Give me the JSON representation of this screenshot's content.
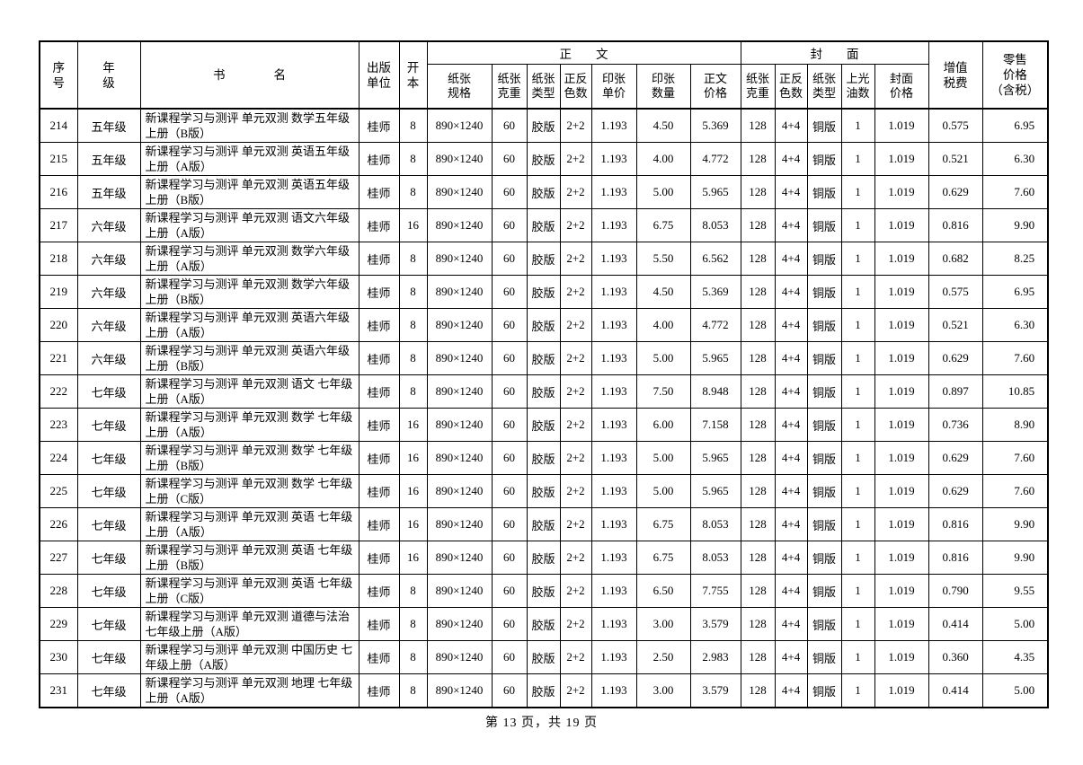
{
  "page": {
    "background_color": "#ffffff",
    "text_color": "#000000",
    "border_color": "#000000",
    "footer": "第 13 页，共 19 页"
  },
  "table": {
    "group_header": {
      "main_text": "正　　文",
      "cover": "封　　面"
    },
    "header": {
      "serial": "序\n号",
      "grade": "年\n级",
      "title": "书　　　　名",
      "publisher": "出版\n单位",
      "format": "开\n本",
      "paper_spec": "纸张\n规格",
      "paper_weight": "纸张\n克重",
      "paper_type": "纸张\n类型",
      "color_count": "正反\n色数",
      "sheet_unit_price": "印张\n单价",
      "sheet_count": "印张\n数量",
      "text_price": "正文\n价格",
      "cover_paper_weight": "纸张\n克重",
      "cover_color_count": "正反\n色数",
      "cover_paper_type": "纸张\n类型",
      "gloss_count": "上光\n油数",
      "cover_price": "封面\n价格",
      "vat": "增值\n税费",
      "retail_price": "零售\n价格\n（含税）"
    },
    "column_keys": [
      "serial",
      "grade",
      "title",
      "publisher",
      "format",
      "paper_spec",
      "paper_weight",
      "paper_type",
      "color_count",
      "sheet_unit_price",
      "sheet_count",
      "text_price",
      "cover_paper_weight",
      "cover_color_count",
      "cover_paper_type",
      "gloss_count",
      "cover_price",
      "vat",
      "retail_price"
    ],
    "rows": [
      [
        "214",
        "五年级",
        "新课程学习与测评 单元双测 数学五年级上册（B版）",
        "桂师",
        "8",
        "890×1240",
        "60",
        "胶版",
        "2+2",
        "1.193",
        "4.50",
        "5.369",
        "128",
        "4+4",
        "铜版",
        "1",
        "1.019",
        "0.575",
        "6.95"
      ],
      [
        "215",
        "五年级",
        "新课程学习与测评 单元双测 英语五年级上册（A版）",
        "桂师",
        "8",
        "890×1240",
        "60",
        "胶版",
        "2+2",
        "1.193",
        "4.00",
        "4.772",
        "128",
        "4+4",
        "铜版",
        "1",
        "1.019",
        "0.521",
        "6.30"
      ],
      [
        "216",
        "五年级",
        "新课程学习与测评 单元双测 英语五年级上册（B版）",
        "桂师",
        "8",
        "890×1240",
        "60",
        "胶版",
        "2+2",
        "1.193",
        "5.00",
        "5.965",
        "128",
        "4+4",
        "铜版",
        "1",
        "1.019",
        "0.629",
        "7.60"
      ],
      [
        "217",
        "六年级",
        "新课程学习与测评 单元双测 语文六年级上册（A版）",
        "桂师",
        "16",
        "890×1240",
        "60",
        "胶版",
        "2+2",
        "1.193",
        "6.75",
        "8.053",
        "128",
        "4+4",
        "铜版",
        "1",
        "1.019",
        "0.816",
        "9.90"
      ],
      [
        "218",
        "六年级",
        "新课程学习与测评 单元双测 数学六年级上册（A版）",
        "桂师",
        "8",
        "890×1240",
        "60",
        "胶版",
        "2+2",
        "1.193",
        "5.50",
        "6.562",
        "128",
        "4+4",
        "铜版",
        "1",
        "1.019",
        "0.682",
        "8.25"
      ],
      [
        "219",
        "六年级",
        "新课程学习与测评 单元双测 数学六年级上册（B版）",
        "桂师",
        "8",
        "890×1240",
        "60",
        "胶版",
        "2+2",
        "1.193",
        "4.50",
        "5.369",
        "128",
        "4+4",
        "铜版",
        "1",
        "1.019",
        "0.575",
        "6.95"
      ],
      [
        "220",
        "六年级",
        "新课程学习与测评 单元双测 英语六年级上册（A版）",
        "桂师",
        "8",
        "890×1240",
        "60",
        "胶版",
        "2+2",
        "1.193",
        "4.00",
        "4.772",
        "128",
        "4+4",
        "铜版",
        "1",
        "1.019",
        "0.521",
        "6.30"
      ],
      [
        "221",
        "六年级",
        "新课程学习与测评 单元双测 英语六年级上册（B版）",
        "桂师",
        "8",
        "890×1240",
        "60",
        "胶版",
        "2+2",
        "1.193",
        "5.00",
        "5.965",
        "128",
        "4+4",
        "铜版",
        "1",
        "1.019",
        "0.629",
        "7.60"
      ],
      [
        "222",
        "七年级",
        "新课程学习与测评 单元双测 语文 七年级上册（A版）",
        "桂师",
        "8",
        "890×1240",
        "60",
        "胶版",
        "2+2",
        "1.193",
        "7.50",
        "8.948",
        "128",
        "4+4",
        "铜版",
        "1",
        "1.019",
        "0.897",
        "10.85"
      ],
      [
        "223",
        "七年级",
        "新课程学习与测评 单元双测 数学 七年级上册（A版）",
        "桂师",
        "16",
        "890×1240",
        "60",
        "胶版",
        "2+2",
        "1.193",
        "6.00",
        "7.158",
        "128",
        "4+4",
        "铜版",
        "1",
        "1.019",
        "0.736",
        "8.90"
      ],
      [
        "224",
        "七年级",
        "新课程学习与测评 单元双测 数学 七年级上册（B版）",
        "桂师",
        "16",
        "890×1240",
        "60",
        "胶版",
        "2+2",
        "1.193",
        "5.00",
        "5.965",
        "128",
        "4+4",
        "铜版",
        "1",
        "1.019",
        "0.629",
        "7.60"
      ],
      [
        "225",
        "七年级",
        "新课程学习与测评 单元双测 数学 七年级上册（C版）",
        "桂师",
        "16",
        "890×1240",
        "60",
        "胶版",
        "2+2",
        "1.193",
        "5.00",
        "5.965",
        "128",
        "4+4",
        "铜版",
        "1",
        "1.019",
        "0.629",
        "7.60"
      ],
      [
        "226",
        "七年级",
        "新课程学习与测评 单元双测 英语 七年级上册（A版）",
        "桂师",
        "16",
        "890×1240",
        "60",
        "胶版",
        "2+2",
        "1.193",
        "6.75",
        "8.053",
        "128",
        "4+4",
        "铜版",
        "1",
        "1.019",
        "0.816",
        "9.90"
      ],
      [
        "227",
        "七年级",
        "新课程学习与测评 单元双测 英语 七年级上册（B版）",
        "桂师",
        "16",
        "890×1240",
        "60",
        "胶版",
        "2+2",
        "1.193",
        "6.75",
        "8.053",
        "128",
        "4+4",
        "铜版",
        "1",
        "1.019",
        "0.816",
        "9.90"
      ],
      [
        "228",
        "七年级",
        "新课程学习与测评 单元双测 英语 七年级上册（C版）",
        "桂师",
        "8",
        "890×1240",
        "60",
        "胶版",
        "2+2",
        "1.193",
        "6.50",
        "7.755",
        "128",
        "4+4",
        "铜版",
        "1",
        "1.019",
        "0.790",
        "9.55"
      ],
      [
        "229",
        "七年级",
        "新课程学习与测评 单元双测 道德与法治 七年级上册（A版）",
        "桂师",
        "8",
        "890×1240",
        "60",
        "胶版",
        "2+2",
        "1.193",
        "3.00",
        "3.579",
        "128",
        "4+4",
        "铜版",
        "1",
        "1.019",
        "0.414",
        "5.00"
      ],
      [
        "230",
        "七年级",
        "新课程学习与测评 单元双测 中国历史 七年级上册（A版）",
        "桂师",
        "8",
        "890×1240",
        "60",
        "胶版",
        "2+2",
        "1.193",
        "2.50",
        "2.983",
        "128",
        "4+4",
        "铜版",
        "1",
        "1.019",
        "0.360",
        "4.35"
      ],
      [
        "231",
        "七年级",
        "新课程学习与测评 单元双测 地理 七年级上册（A版）",
        "桂师",
        "8",
        "890×1240",
        "60",
        "胶版",
        "2+2",
        "1.193",
        "3.00",
        "3.579",
        "128",
        "4+4",
        "铜版",
        "1",
        "1.019",
        "0.414",
        "5.00"
      ]
    ]
  }
}
